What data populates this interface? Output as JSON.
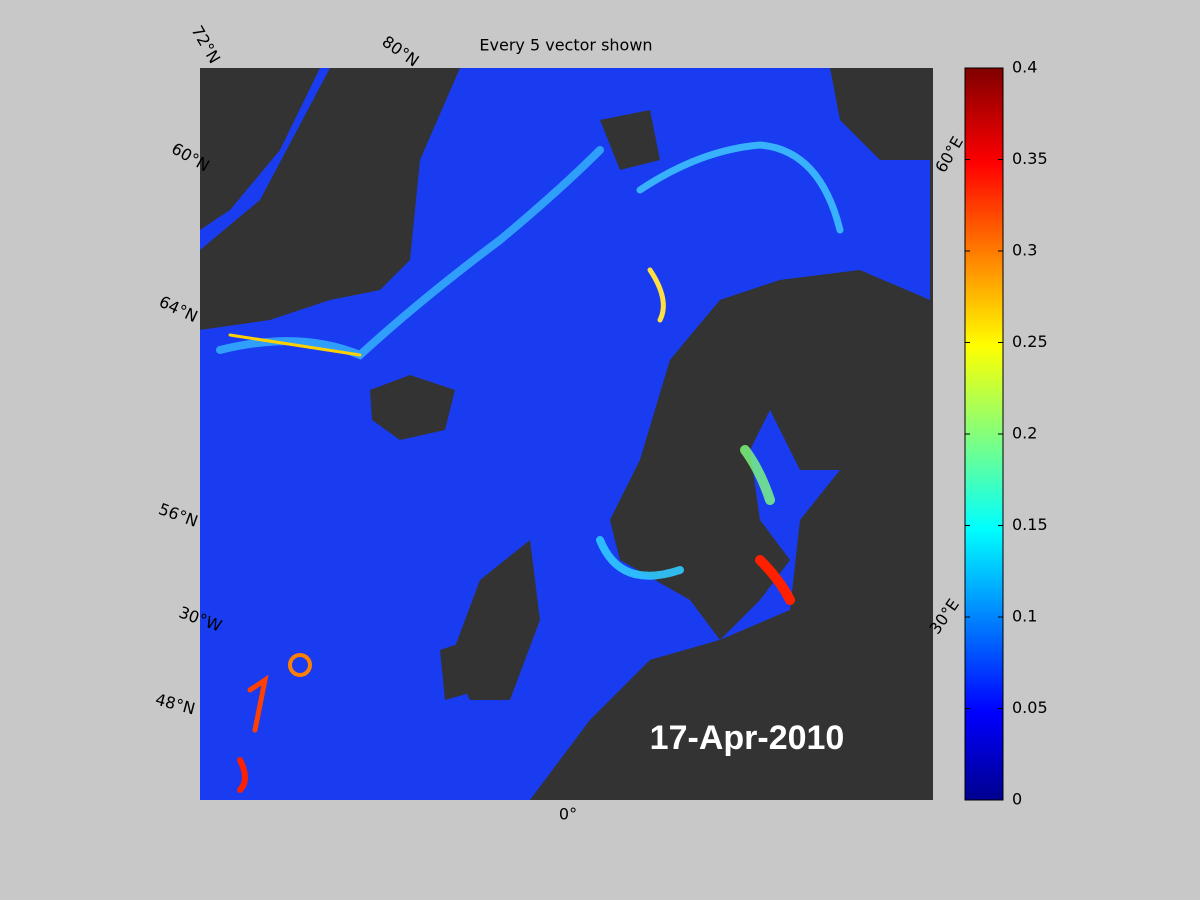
{
  "title": "Every 5 vector shown",
  "date_label": "17-Apr-2010",
  "graticule_labels": [
    "72°N",
    "80°N",
    "60°N",
    "64°N",
    "56°N",
    "30°W",
    "48°N",
    "0°",
    "30°E",
    "60°E"
  ],
  "colorbar": {
    "lim": [
      0,
      0.4
    ],
    "ticks": [
      0,
      0.05,
      0.1,
      0.15,
      0.2,
      0.25,
      0.3,
      0.35,
      0.4
    ]
  }
}
